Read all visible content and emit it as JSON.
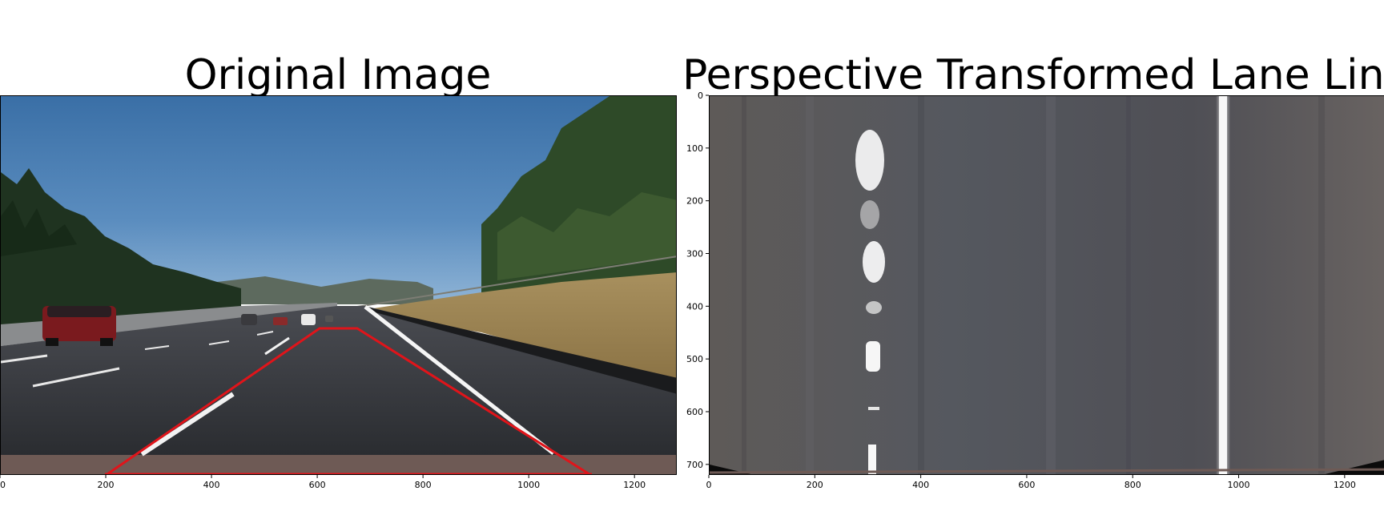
{
  "titles": {
    "left": "Original Image",
    "right": "Perspective Transformed Lane Line"
  },
  "left_axis": {
    "x_ticks": [
      "0",
      "200",
      "400",
      "600",
      "800",
      "1000",
      "1200"
    ]
  },
  "right_axis": {
    "x_ticks": [
      "0",
      "200",
      "400",
      "600",
      "800",
      "1000",
      "1200"
    ],
    "y_ticks": [
      "0",
      "100",
      "200",
      "300",
      "400",
      "500",
      "600",
      "700"
    ]
  },
  "colors": {
    "overlay_line": "#e0141a",
    "sky": "#4a7fb4",
    "road": "#2c2e33",
    "warped_road": "#5a5856"
  }
}
